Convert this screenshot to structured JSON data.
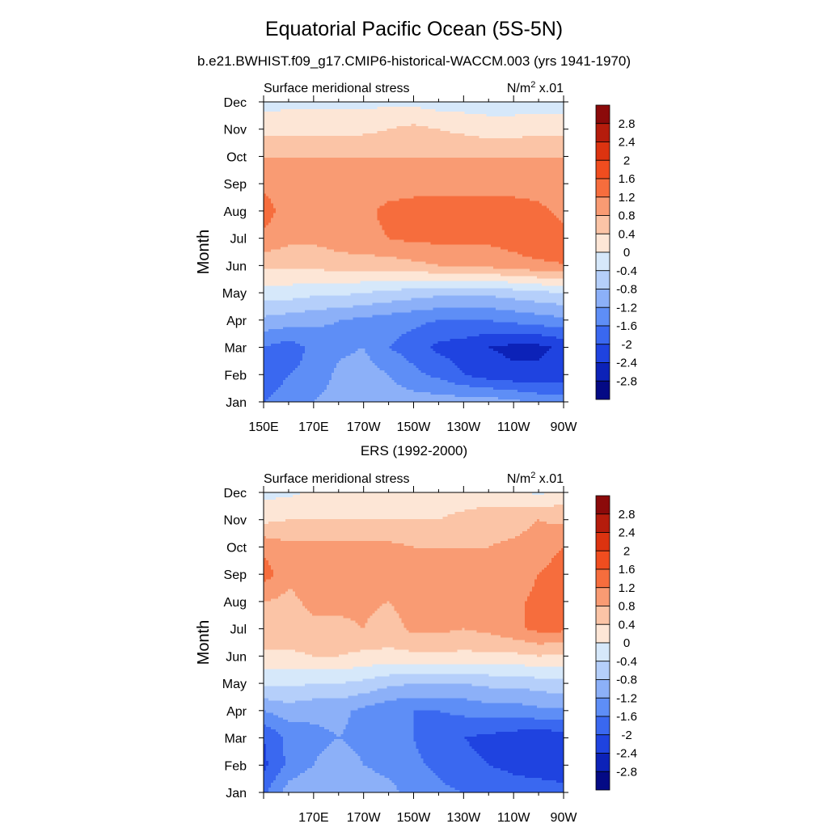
{
  "figure": {
    "title": "Equatorial Pacific Ocean (5S-5N)",
    "subtitle": "b.e21.BWHIST.f09_g17.CMIP6-historical-WACCM.003 (yrs 1941-1970)"
  },
  "colorbar": {
    "levels": [
      "2.8",
      "2.4",
      "2",
      "1.6",
      "1.2",
      "0.8",
      "0.4",
      "0",
      "-0.4",
      "-0.8",
      "-1.2",
      "-1.6",
      "-2",
      "-2.4",
      "-2.8"
    ],
    "colors": [
      "#8b0a0a",
      "#b51c0c",
      "#dc3310",
      "#f04d1f",
      "#f66d3d",
      "#f99b73",
      "#fbc4a6",
      "#fde6d6",
      "#d6e8fa",
      "#b5cffa",
      "#8cb0f8",
      "#5e8ef6",
      "#3a68f0",
      "#1f43e0",
      "#0c22b8",
      "#040a85"
    ]
  },
  "chart_data": [
    {
      "type": "heatmap",
      "title": "",
      "left_string": "Surface meridional stress",
      "right_string_base": "N/m",
      "right_string_sup": "2",
      "right_string_tail": " x.01",
      "ylabel": "Month",
      "xlabel": "",
      "x_ticks": [
        "150E",
        "170E",
        "170W",
        "150W",
        "130W",
        "110W",
        "90W"
      ],
      "y_ticks": [
        "Jan",
        "Feb",
        "Mar",
        "Apr",
        "May",
        "Jun",
        "Jul",
        "Aug",
        "Sep",
        "Oct",
        "Nov",
        "Dec"
      ],
      "units": "N/m2 x.01",
      "x_lon": [
        150,
        160,
        170,
        180,
        190,
        200,
        210,
        220,
        230,
        240,
        250,
        260,
        270
      ],
      "x_lon_note": "degrees east (150E..270E = 90W)",
      "values": [
        [
          -1.6,
          -1.4,
          -1.2,
          -1.0,
          -0.9,
          -1.0,
          -1.0,
          -1.0,
          -1.0,
          -1.0,
          -1.1,
          -1.3,
          -1.4
        ],
        [
          -1.9,
          -1.6,
          -1.5,
          -1.1,
          -1.0,
          -1.2,
          -1.5,
          -1.7,
          -2.0,
          -2.2,
          -2.3,
          -2.3,
          -2.2
        ],
        [
          -1.6,
          -1.8,
          -1.5,
          -1.3,
          -1.2,
          -1.6,
          -1.8,
          -2.1,
          -2.2,
          -2.4,
          -2.5,
          -2.5,
          -2.3
        ],
        [
          -0.9,
          -1.0,
          -1.1,
          -1.2,
          -1.3,
          -1.4,
          -1.5,
          -1.6,
          -1.6,
          -1.6,
          -1.5,
          -1.4,
          -1.3
        ],
        [
          -0.2,
          -0.2,
          -0.3,
          -0.3,
          -0.4,
          -0.5,
          -0.6,
          -0.7,
          -0.7,
          -0.7,
          -0.6,
          -0.5,
          -0.4
        ],
        [
          0.5,
          0.5,
          0.5,
          0.6,
          0.6,
          0.6,
          0.7,
          0.8,
          0.9,
          0.9,
          1.0,
          1.1,
          1.2
        ],
        [
          1.1,
          0.9,
          0.9,
          1.0,
          1.1,
          1.2,
          1.3,
          1.3,
          1.3,
          1.3,
          1.4,
          1.6,
          1.3
        ],
        [
          1.4,
          1.0,
          1.0,
          1.0,
          1.1,
          1.3,
          1.4,
          1.4,
          1.4,
          1.4,
          1.4,
          1.3,
          1.1
        ],
        [
          1.1,
          0.9,
          0.9,
          0.9,
          0.9,
          1.0,
          1.0,
          1.0,
          1.0,
          1.0,
          1.0,
          1.0,
          0.9
        ],
        [
          0.8,
          0.8,
          0.8,
          0.8,
          0.8,
          0.8,
          0.8,
          0.8,
          0.8,
          0.8,
          0.8,
          0.8,
          0.8
        ],
        [
          0.3,
          0.3,
          0.3,
          0.3,
          0.3,
          0.4,
          0.5,
          0.4,
          0.3,
          0.2,
          0.2,
          0.3,
          0.3
        ],
        [
          -0.2,
          -0.1,
          -0.1,
          -0.1,
          -0.1,
          -0.1,
          -0.1,
          -0.2,
          -0.2,
          -0.2,
          -0.2,
          -0.2,
          -0.2
        ]
      ]
    },
    {
      "type": "heatmap",
      "title": "ERS (1992-2000)",
      "left_string": "Surface meridional stress",
      "right_string_base": "N/m",
      "right_string_sup": "2",
      "right_string_tail": " x.01",
      "ylabel": "Month",
      "xlabel": "",
      "x_ticks": [
        "",
        "170E",
        "170W",
        "150W",
        "130W",
        "110W",
        "90W"
      ],
      "y_ticks": [
        "Jan",
        "Feb",
        "Mar",
        "Apr",
        "May",
        "Jun",
        "Jul",
        "Aug",
        "Sep",
        "Oct",
        "Nov",
        "Dec"
      ],
      "units": "N/m2 x.01",
      "x_lon": [
        150,
        160,
        170,
        180,
        190,
        200,
        210,
        220,
        230,
        240,
        250,
        260,
        270
      ],
      "x_lon_note": "degrees east (150E..270E = 90W)",
      "values": [
        [
          -1.7,
          -1.0,
          -0.8,
          -0.9,
          -1.0,
          -1.1,
          -1.3,
          -1.5,
          -1.6,
          -1.7,
          -1.8,
          -1.8,
          -1.9
        ],
        [
          -2.1,
          -1.5,
          -1.2,
          -1.0,
          -1.2,
          -1.3,
          -1.5,
          -1.7,
          -1.9,
          -2.0,
          -2.1,
          -2.2,
          -2.2
        ],
        [
          -2.0,
          -1.5,
          -1.3,
          -1.2,
          -1.3,
          -1.4,
          -1.6,
          -1.9,
          -2.0,
          -2.1,
          -2.2,
          -2.3,
          -2.2
        ],
        [
          -1.2,
          -1.0,
          -1.1,
          -1.1,
          -1.3,
          -1.5,
          -1.6,
          -1.6,
          -1.5,
          -1.4,
          -1.4,
          -1.3,
          -1.3
        ],
        [
          -0.3,
          -0.3,
          -0.4,
          -0.4,
          -0.5,
          -0.7,
          -0.8,
          -0.8,
          -0.8,
          -0.7,
          -0.7,
          -0.6,
          -0.5
        ],
        [
          0.3,
          0.3,
          0.4,
          0.4,
          0.3,
          0.3,
          0.3,
          0.3,
          0.3,
          0.3,
          0.3,
          0.4,
          0.3
        ],
        [
          0.8,
          0.7,
          0.7,
          0.7,
          0.8,
          0.6,
          0.9,
          0.9,
          0.8,
          0.9,
          1.1,
          1.3,
          1.3
        ],
        [
          0.8,
          0.7,
          0.9,
          0.9,
          0.9,
          0.8,
          1.0,
          1.0,
          0.9,
          0.9,
          1.1,
          1.3,
          1.4
        ],
        [
          1.4,
          0.9,
          1.0,
          0.9,
          1.0,
          0.9,
          1.0,
          1.0,
          0.9,
          0.9,
          1.0,
          1.2,
          1.4
        ],
        [
          1.1,
          0.9,
          0.9,
          0.9,
          0.9,
          0.9,
          0.8,
          0.8,
          0.8,
          0.8,
          0.9,
          1.0,
          1.2
        ],
        [
          0.3,
          0.4,
          0.4,
          0.4,
          0.4,
          0.4,
          0.4,
          0.4,
          0.5,
          0.6,
          0.6,
          0.8,
          0.7
        ],
        [
          -0.1,
          -0.1,
          0.1,
          0.1,
          0.1,
          0.2,
          0.2,
          0.2,
          0.2,
          0.2,
          0.2,
          -0.1,
          0.2
        ]
      ]
    }
  ]
}
